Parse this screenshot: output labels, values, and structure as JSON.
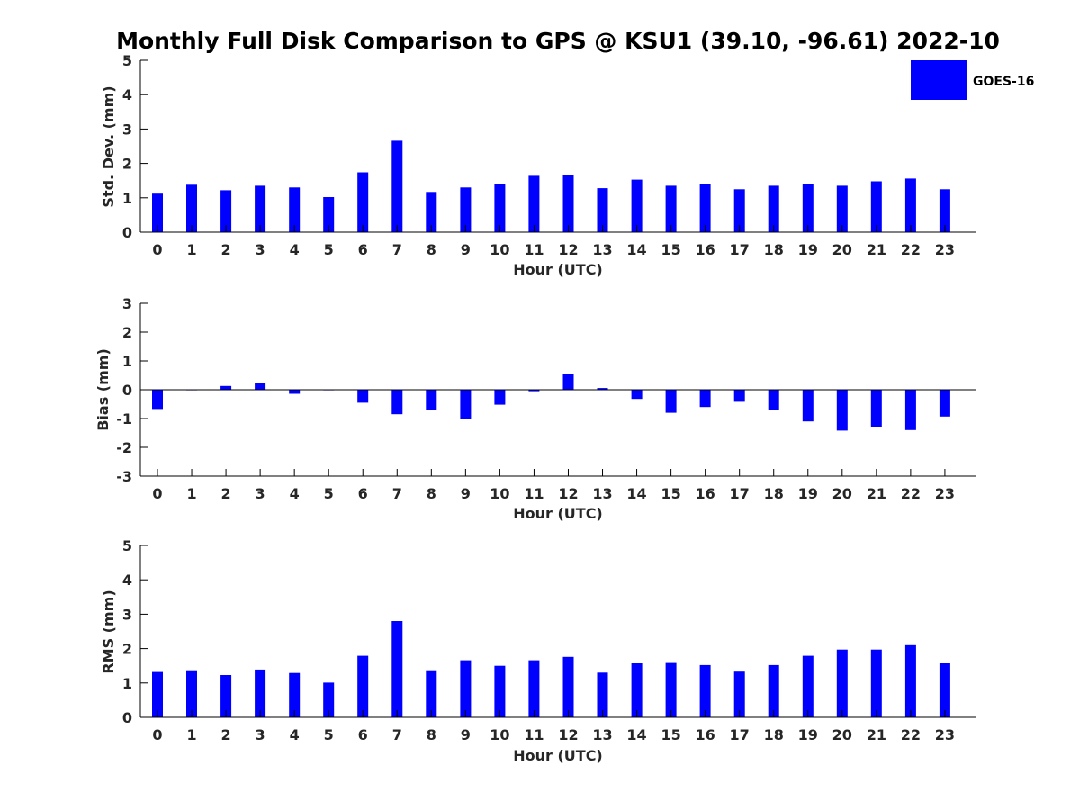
{
  "figure_title": "Monthly Full Disk Comparison to GPS @ KSU1 (39.10, -96.61) 2022-10",
  "legend": {
    "label": "GOES-16",
    "color": "#0000ff"
  },
  "chart_data": [
    {
      "type": "bar",
      "title": "",
      "xlabel": "Hour (UTC)",
      "ylabel": "Std. Dev. (mm)",
      "categories": [
        "0",
        "1",
        "2",
        "3",
        "4",
        "5",
        "6",
        "7",
        "8",
        "9",
        "10",
        "11",
        "12",
        "13",
        "14",
        "15",
        "16",
        "17",
        "18",
        "19",
        "20",
        "21",
        "22",
        "23"
      ],
      "series": [
        {
          "name": "GOES-16",
          "values": [
            1.12,
            1.38,
            1.22,
            1.35,
            1.3,
            1.02,
            1.74,
            2.66,
            1.17,
            1.3,
            1.4,
            1.64,
            1.66,
            1.28,
            1.53,
            1.35,
            1.4,
            1.25,
            1.35,
            1.4,
            1.35,
            1.48,
            1.56,
            1.25
          ]
        }
      ],
      "ylim": [
        0,
        5
      ],
      "yticks": [
        "0",
        "1",
        "2",
        "3",
        "4",
        "5"
      ],
      "grid": false,
      "legend_position": "top-right"
    },
    {
      "type": "bar",
      "title": "",
      "xlabel": "Hour (UTC)",
      "ylabel": "Bias (mm)",
      "categories": [
        "0",
        "1",
        "2",
        "3",
        "4",
        "5",
        "6",
        "7",
        "8",
        "9",
        "10",
        "11",
        "12",
        "13",
        "14",
        "15",
        "16",
        "17",
        "18",
        "19",
        "20",
        "21",
        "22",
        "23"
      ],
      "series": [
        {
          "name": "GOES-16",
          "values": [
            -0.67,
            -0.02,
            0.13,
            0.22,
            -0.14,
            -0.02,
            -0.45,
            -0.85,
            -0.7,
            -1.0,
            -0.52,
            -0.05,
            0.55,
            0.06,
            -0.32,
            -0.8,
            -0.6,
            -0.42,
            -0.72,
            -1.1,
            -1.42,
            -1.28,
            -1.4,
            -0.93
          ]
        }
      ],
      "ylim": [
        -3,
        3
      ],
      "yticks": [
        "-3",
        "-2",
        "-1",
        "0",
        "1",
        "2",
        "3"
      ],
      "grid": false
    },
    {
      "type": "bar",
      "title": "",
      "xlabel": "Hour (UTC)",
      "ylabel": "RMS (mm)",
      "categories": [
        "0",
        "1",
        "2",
        "3",
        "4",
        "5",
        "6",
        "7",
        "8",
        "9",
        "10",
        "11",
        "12",
        "13",
        "14",
        "15",
        "16",
        "17",
        "18",
        "19",
        "20",
        "21",
        "22",
        "23"
      ],
      "series": [
        {
          "name": "GOES-16",
          "values": [
            1.32,
            1.37,
            1.23,
            1.39,
            1.29,
            1.01,
            1.79,
            2.8,
            1.37,
            1.66,
            1.5,
            1.66,
            1.76,
            1.3,
            1.57,
            1.58,
            1.52,
            1.33,
            1.52,
            1.79,
            1.97,
            1.97,
            2.1,
            1.57
          ]
        }
      ],
      "ylim": [
        0,
        5
      ],
      "yticks": [
        "0",
        "1",
        "2",
        "3",
        "4",
        "5"
      ],
      "grid": false
    }
  ]
}
